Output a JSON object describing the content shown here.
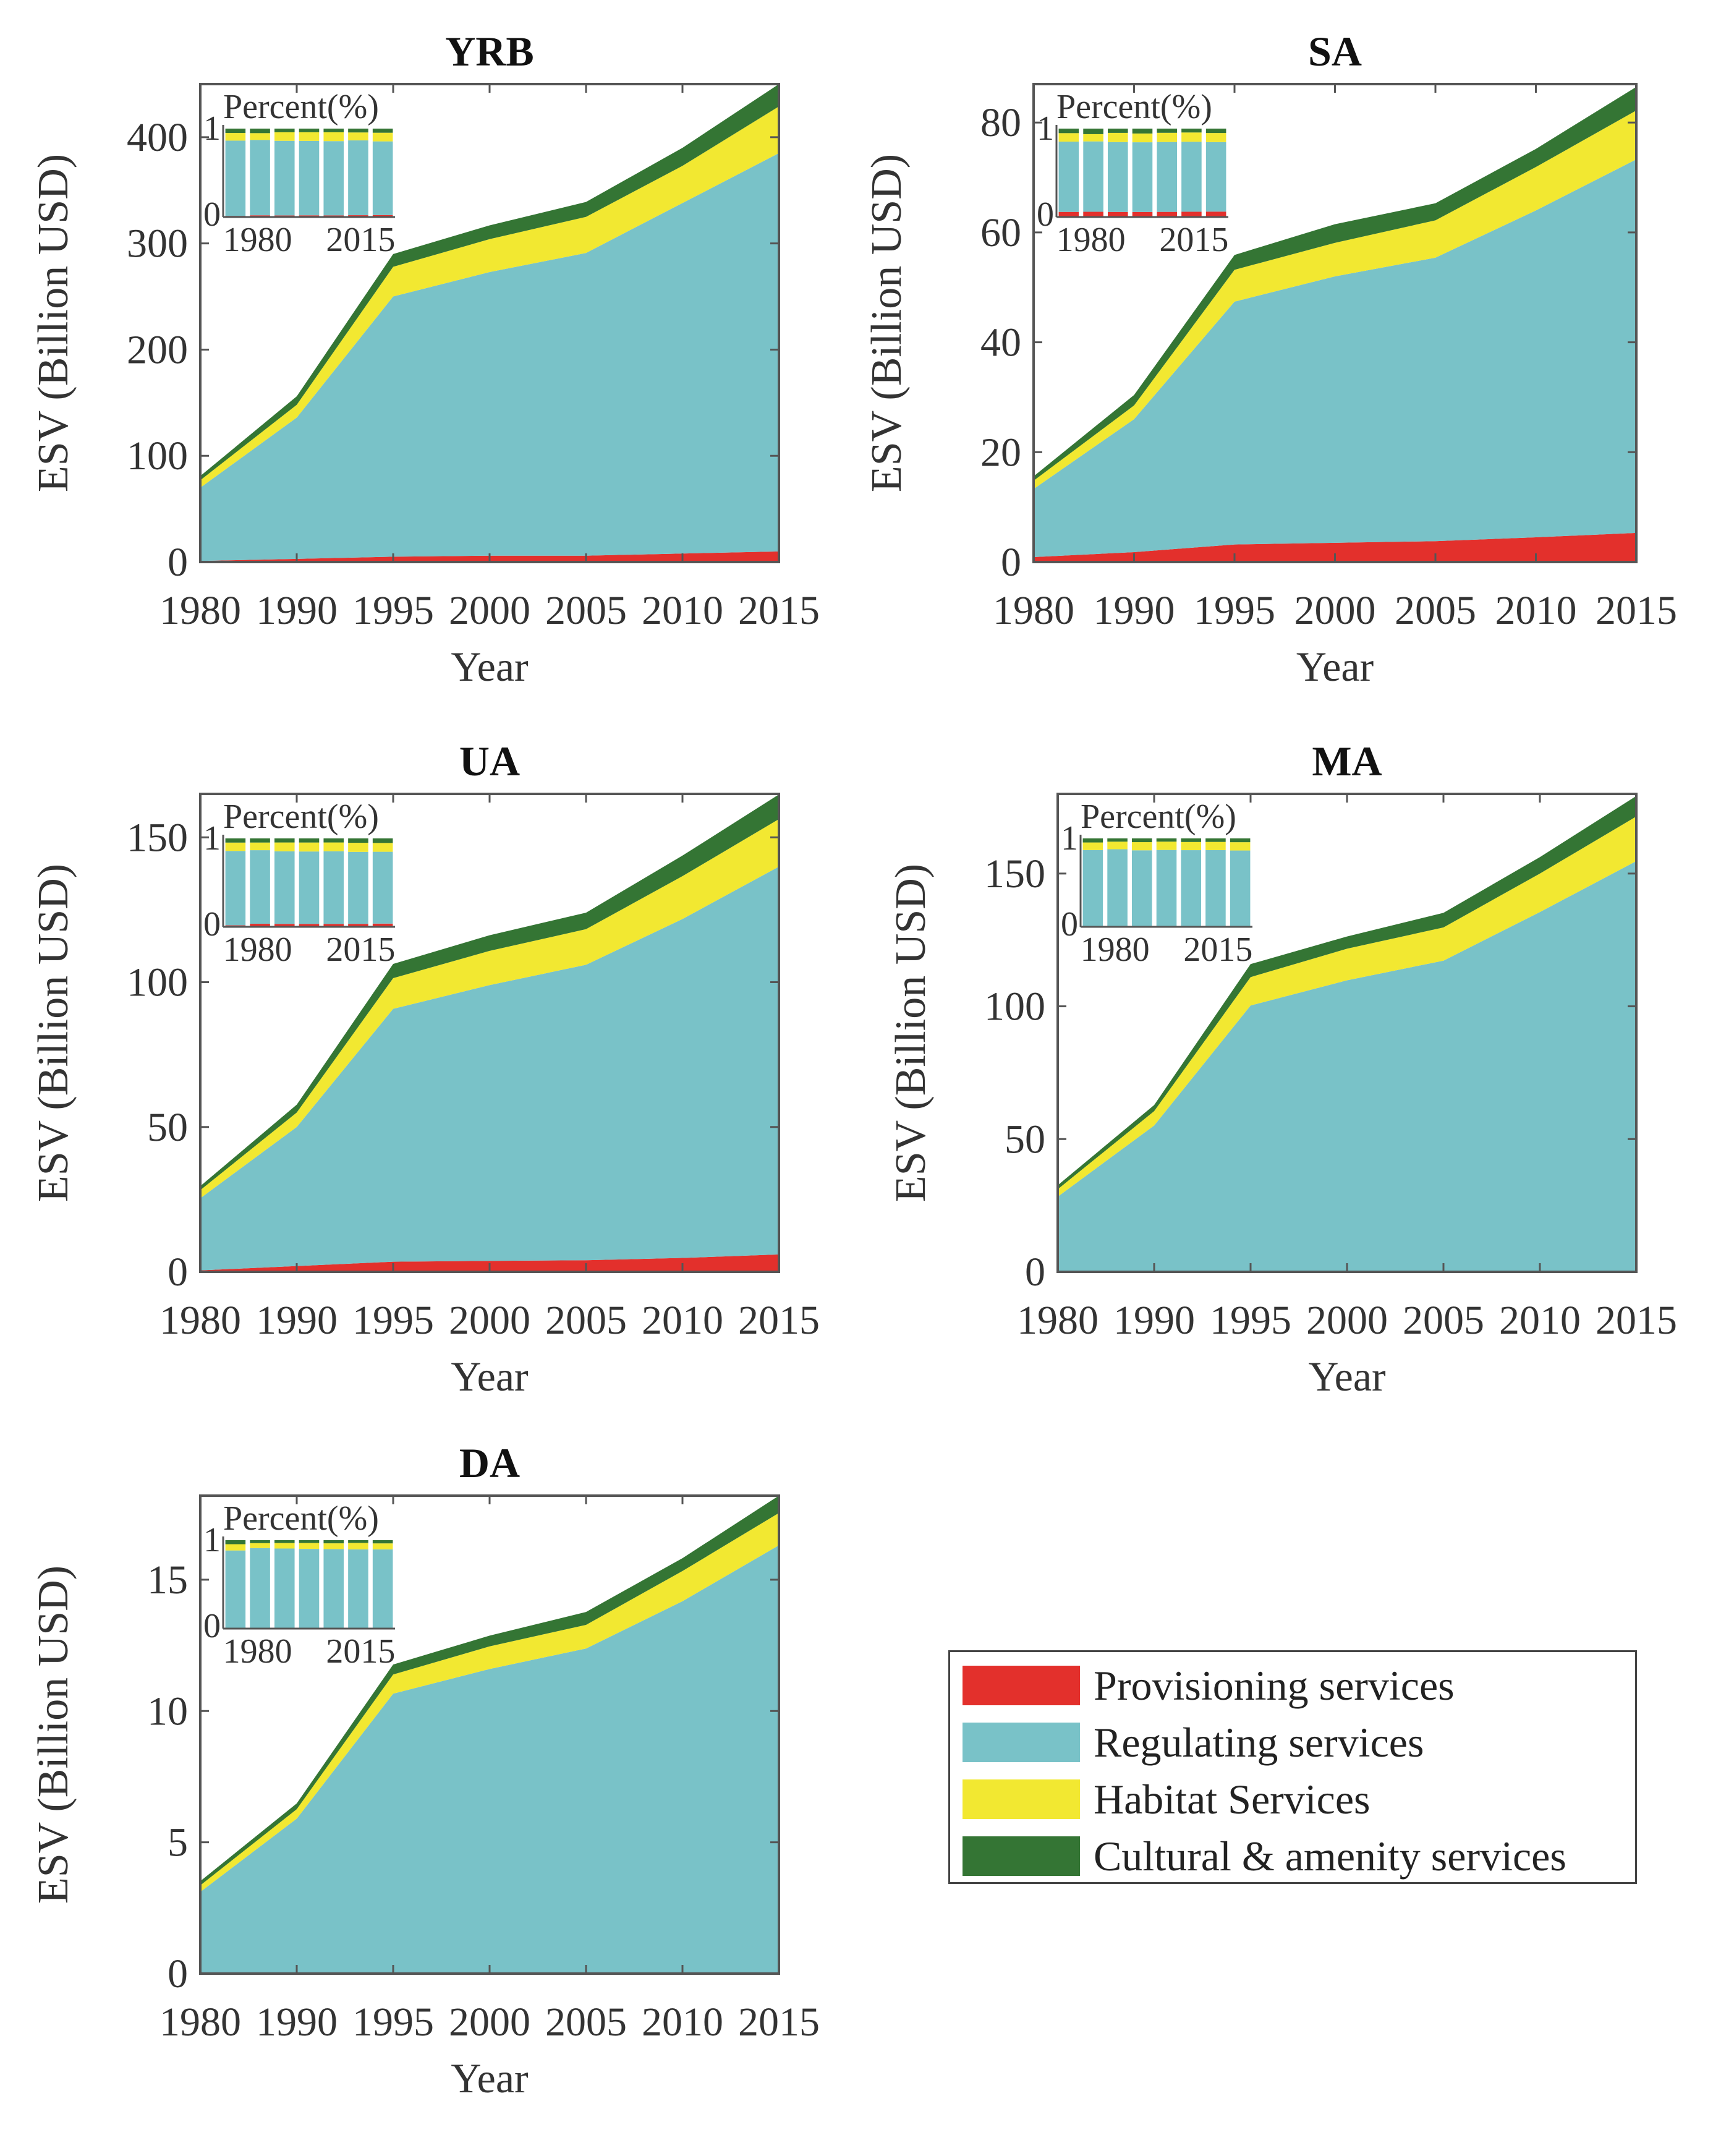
{
  "colors": {
    "provisioning": "#e3302c",
    "regulating": "#79c2c8",
    "habitat": "#f2e831",
    "cultural": "#347534"
  },
  "legend": [
    {
      "key": "provisioning",
      "label": "Provisioning services"
    },
    {
      "key": "regulating",
      "label": "Regulating services"
    },
    {
      "key": "habitat",
      "label": "Habitat Services"
    },
    {
      "key": "cultural",
      "label": "Cultural & amenity services"
    }
  ],
  "chart_data": [
    {
      "type": "area",
      "stacked": true,
      "title": "YRB",
      "xlabel": "Year",
      "ylabel": "ESV (Billion USD)",
      "x": [
        "1980",
        "1990",
        "1995",
        "2000",
        "2005",
        "2010",
        "2015"
      ],
      "ylim": [
        0,
        450
      ],
      "yticks": [
        0,
        100,
        200,
        300,
        400
      ],
      "series": [
        {
          "name": "Provisioning services",
          "values": [
            1,
            3,
            5,
            6,
            6,
            8,
            10
          ]
        },
        {
          "name": "Regulating services",
          "values": [
            69,
            133,
            245,
            267,
            285,
            330,
            375
          ]
        },
        {
          "name": "Habitat Services",
          "values": [
            7,
            12,
            28,
            31,
            34,
            35,
            44
          ]
        },
        {
          "name": "Cultural & amenity services",
          "values": [
            4,
            8,
            12,
            13,
            14,
            17,
            21
          ]
        }
      ],
      "inset": {
        "title": "Percent(%)",
        "type": "stacked-bar-percent",
        "yticks": [
          "0",
          "1"
        ],
        "xticks": [
          "1980",
          "2015"
        ]
      }
    },
    {
      "type": "area",
      "stacked": true,
      "title": "SA",
      "xlabel": "Year",
      "ylabel": "ESV (Billion USD)",
      "x": [
        "1980",
        "1990",
        "1995",
        "2000",
        "2005",
        "2010",
        "2015"
      ],
      "ylim": [
        0,
        87
      ],
      "yticks": [
        0,
        20,
        40,
        60,
        80
      ],
      "series": [
        {
          "name": "Provisioning services",
          "values": [
            0.9,
            1.8,
            3.2,
            3.5,
            3.8,
            4.5,
            5.3
          ]
        },
        {
          "name": "Regulating services",
          "values": [
            12.4,
            24.2,
            44.2,
            48.5,
            51.6,
            59.5,
            68
          ]
        },
        {
          "name": "Habitat Services",
          "values": [
            1.5,
            2.5,
            5.8,
            6.1,
            6.8,
            7.9,
            8.9
          ]
        },
        {
          "name": "Cultural & amenity services",
          "values": [
            0.8,
            1.9,
            2.7,
            3.4,
            3.1,
            3.3,
            4.3
          ]
        }
      ],
      "inset": {
        "title": "Percent(%)",
        "type": "stacked-bar-percent",
        "yticks": [
          "0",
          "1"
        ],
        "xticks": [
          "1980",
          "2015"
        ]
      }
    },
    {
      "type": "area",
      "stacked": true,
      "title": "UA",
      "xlabel": "Year",
      "ylabel": "ESV (Billion USD)",
      "x": [
        "1980",
        "1990",
        "1995",
        "2000",
        "2005",
        "2010",
        "2015"
      ],
      "ylim": [
        0,
        165
      ],
      "yticks": [
        0,
        50,
        100,
        150
      ],
      "series": [
        {
          "name": "Provisioning services",
          "values": [
            0.5,
            2,
            3.5,
            3.8,
            4,
            4.8,
            6
          ]
        },
        {
          "name": "Regulating services",
          "values": [
            24.9,
            48,
            87.3,
            95.2,
            102,
            117,
            133.9
          ]
        },
        {
          "name": "Habitat Services",
          "values": [
            2.8,
            5,
            10.6,
            11.8,
            12.3,
            14.8,
            16.4
          ]
        },
        {
          "name": "Cultural & amenity services",
          "values": [
            1.4,
            2.7,
            4.9,
            5.4,
            5.7,
            7.1,
            8.5
          ]
        }
      ],
      "inset": {
        "title": "Percent(%)",
        "type": "stacked-bar-percent",
        "yticks": [
          "0",
          "1"
        ],
        "xticks": [
          "1980",
          "2015"
        ]
      }
    },
    {
      "type": "area",
      "stacked": true,
      "title": "MA",
      "xlabel": "Year",
      "ylabel": "ESV (Billion USD)",
      "x": [
        "1980",
        "1990",
        "1995",
        "2000",
        "2005",
        "2010",
        "2015"
      ],
      "ylim": [
        0,
        180
      ],
      "yticks": [
        0,
        50,
        100,
        150
      ],
      "series": [
        {
          "name": "Provisioning services",
          "values": [
            0.1,
            0.1,
            0.1,
            0.1,
            0.1,
            0.1,
            0.1
          ]
        },
        {
          "name": "Regulating services",
          "values": [
            28.2,
            55,
            100.2,
            109.7,
            117.1,
            135.4,
            154.6
          ]
        },
        {
          "name": "Habitat Services",
          "values": [
            2.8,
            5.4,
            10.7,
            11.9,
            12.5,
            14.5,
            16.8
          ]
        },
        {
          "name": "Cultural & amenity services",
          "values": [
            1.5,
            2.3,
            4.9,
            4.6,
            5.5,
            6.2,
            7.7
          ]
        }
      ],
      "inset": {
        "title": "Percent(%)",
        "type": "stacked-bar-percent",
        "yticks": [
          "0",
          "1"
        ],
        "xticks": [
          "1980",
          "2015"
        ]
      }
    },
    {
      "type": "area",
      "stacked": true,
      "title": "DA",
      "xlabel": "Year",
      "ylabel": "ESV (Billion USD)",
      "x": [
        "1980",
        "1990",
        "1995",
        "2000",
        "2005",
        "2010",
        "2015"
      ],
      "ylim": [
        0,
        18.2
      ],
      "yticks": [
        0,
        5,
        10,
        15
      ],
      "series": [
        {
          "name": "Provisioning services",
          "values": [
            0.02,
            0.01,
            0,
            0,
            0,
            0,
            0
          ]
        },
        {
          "name": "Regulating services",
          "values": [
            3.09,
            5.89,
            10.66,
            11.6,
            12.38,
            14.18,
            16.31
          ]
        },
        {
          "name": "Habitat Services",
          "values": [
            0.25,
            0.36,
            0.73,
            0.86,
            0.9,
            1.15,
            1.23
          ]
        },
        {
          "name": "Cultural & amenity services",
          "values": [
            0.16,
            0.22,
            0.38,
            0.41,
            0.49,
            0.49,
            0.66
          ]
        }
      ],
      "inset": {
        "title": "Percent(%)",
        "type": "stacked-bar-percent",
        "yticks": [
          "0",
          "1"
        ],
        "xticks": [
          "1980",
          "2015"
        ]
      }
    }
  ]
}
